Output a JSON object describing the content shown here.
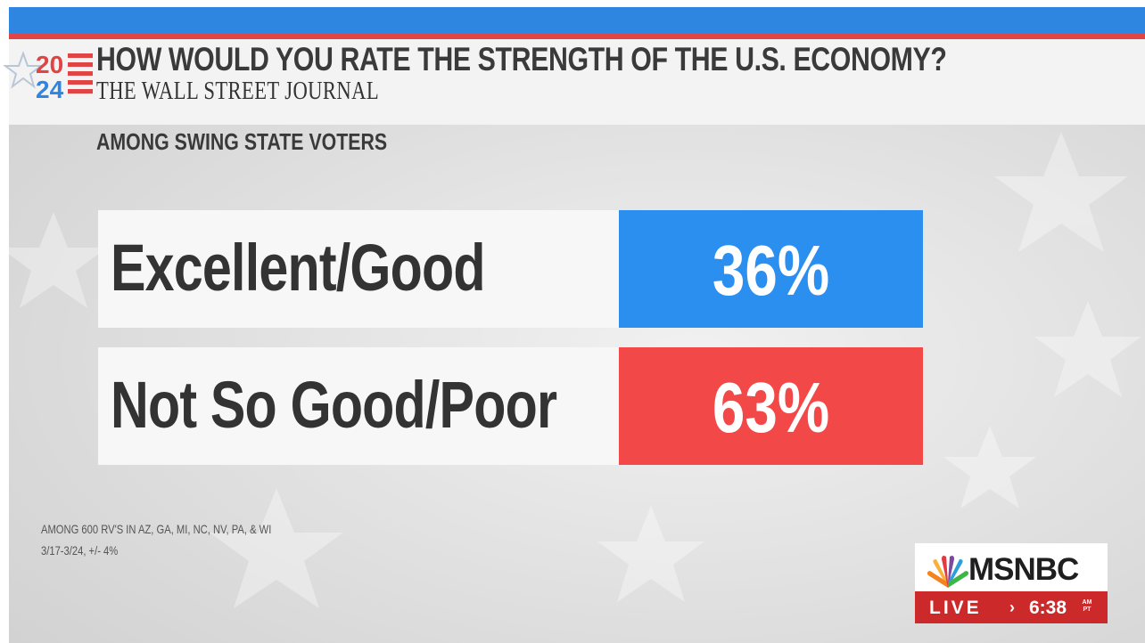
{
  "header": {
    "logo_top": "20",
    "logo_bottom": "24",
    "title": "HOW WOULD YOU RATE THE STRENGTH OF THE U.S. ECONOMY?",
    "source": "THE WALL STREET JOURNAL",
    "subtitle": "AMONG SWING STATE VOTERS"
  },
  "results": [
    {
      "label": "Excellent/Good",
      "value": "36%",
      "color": "#2b8ff0"
    },
    {
      "label": "Not So Good/Poor",
      "value": "63%",
      "color": "#f24848"
    }
  ],
  "footnote": {
    "line1": "AMONG 600 RV'S IN AZ, GA, MI, NC, NV, PA, & WI",
    "line2": "3/17-3/24, +/- 4%"
  },
  "network": {
    "name": "MSNBC",
    "live_label": "LIVE",
    "arrow": "›",
    "time": "6:38",
    "am": "AM",
    "tz": "PT"
  },
  "colors": {
    "top_bar": "#2e86e0",
    "stripe": "#e04444",
    "live_bg": "#cc2a2a"
  }
}
